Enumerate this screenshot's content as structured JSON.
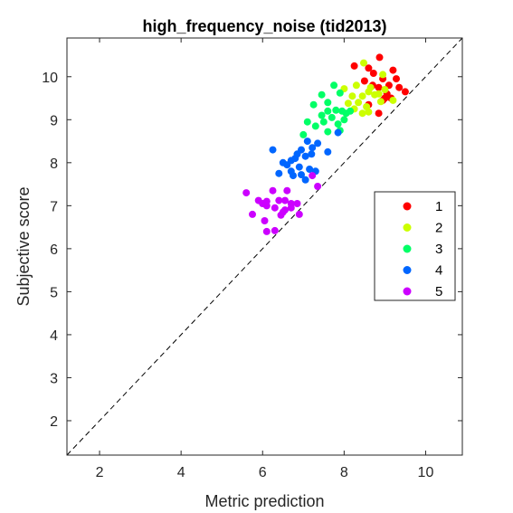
{
  "chart_data": {
    "type": "scatter",
    "title": "high_frequency_noise (tid2013)",
    "xlabel": "Metric prediction",
    "ylabel": "Subjective score",
    "xlim": [
      1.2,
      10.9
    ],
    "ylim": [
      1.2,
      10.9
    ],
    "xticks": [
      2,
      4,
      6,
      8,
      10
    ],
    "yticks": [
      2,
      3,
      4,
      5,
      6,
      7,
      8,
      9,
      10
    ],
    "grid": false,
    "reference_line": {
      "style": "dashed",
      "from": [
        1.2,
        1.2
      ],
      "to": [
        10.9,
        10.9
      ]
    },
    "legend": {
      "placement": "right"
    },
    "series": [
      {
        "name": "1",
        "color": "#ff0000",
        "points": [
          [
            8.87,
            10.45
          ],
          [
            8.25,
            10.25
          ],
          [
            8.6,
            10.2
          ],
          [
            8.72,
            10.08
          ],
          [
            8.5,
            9.9
          ],
          [
            8.95,
            9.95
          ],
          [
            9.2,
            10.15
          ],
          [
            9.28,
            9.95
          ],
          [
            9.1,
            9.8
          ],
          [
            8.85,
            9.75
          ],
          [
            8.7,
            9.8
          ],
          [
            9.35,
            9.75
          ],
          [
            9.5,
            9.65
          ],
          [
            9.05,
            9.6
          ],
          [
            9.15,
            9.5
          ],
          [
            8.95,
            9.45
          ],
          [
            8.6,
            9.35
          ],
          [
            8.85,
            9.15
          ],
          [
            9.0,
            9.5
          ]
        ]
      },
      {
        "name": "2",
        "color": "#ccff00",
        "points": [
          [
            8.48,
            10.32
          ],
          [
            8.95,
            10.05
          ],
          [
            8.0,
            9.72
          ],
          [
            8.3,
            9.8
          ],
          [
            8.6,
            9.65
          ],
          [
            8.2,
            9.55
          ],
          [
            8.45,
            9.55
          ],
          [
            8.75,
            9.58
          ],
          [
            8.9,
            9.42
          ],
          [
            9.2,
            9.45
          ],
          [
            8.35,
            9.4
          ],
          [
            8.55,
            9.3
          ],
          [
            8.6,
            9.18
          ],
          [
            8.25,
            9.25
          ],
          [
            8.45,
            9.15
          ],
          [
            8.85,
            9.6
          ],
          [
            9.0,
            9.7
          ],
          [
            8.65,
            9.75
          ],
          [
            8.1,
            9.38
          ]
        ]
      },
      {
        "name": "3",
        "color": "#00ff66",
        "points": [
          [
            7.75,
            9.8
          ],
          [
            7.9,
            9.62
          ],
          [
            7.45,
            9.58
          ],
          [
            7.6,
            9.4
          ],
          [
            7.25,
            9.35
          ],
          [
            7.6,
            9.2
          ],
          [
            7.8,
            9.22
          ],
          [
            7.95,
            9.2
          ],
          [
            8.05,
            9.15
          ],
          [
            7.45,
            9.1
          ],
          [
            7.7,
            9.05
          ],
          [
            7.1,
            8.95
          ],
          [
            7.5,
            8.95
          ],
          [
            7.85,
            8.9
          ],
          [
            7.3,
            8.85
          ],
          [
            7.6,
            8.72
          ],
          [
            7.0,
            8.65
          ],
          [
            8.15,
            9.2
          ],
          [
            8.0,
            9.0
          ],
          [
            7.9,
            8.75
          ]
        ]
      },
      {
        "name": "4",
        "color": "#0066ff",
        "points": [
          [
            6.25,
            8.3
          ],
          [
            6.95,
            8.3
          ],
          [
            7.22,
            8.35
          ],
          [
            7.1,
            8.5
          ],
          [
            7.35,
            8.45
          ],
          [
            6.85,
            8.2
          ],
          [
            7.05,
            8.15
          ],
          [
            7.2,
            8.2
          ],
          [
            6.7,
            8.05
          ],
          [
            6.5,
            8.0
          ],
          [
            6.6,
            7.95
          ],
          [
            6.9,
            7.9
          ],
          [
            7.15,
            7.85
          ],
          [
            6.4,
            7.75
          ],
          [
            6.95,
            7.72
          ],
          [
            7.3,
            7.8
          ],
          [
            6.75,
            7.7
          ],
          [
            7.05,
            7.6
          ],
          [
            6.8,
            8.1
          ],
          [
            6.7,
            7.8
          ],
          [
            7.85,
            8.7
          ],
          [
            7.6,
            8.25
          ]
        ]
      },
      {
        "name": "5",
        "color": "#cc00ff",
        "points": [
          [
            5.6,
            7.3
          ],
          [
            6.25,
            7.35
          ],
          [
            6.6,
            7.35
          ],
          [
            5.9,
            7.12
          ],
          [
            6.1,
            7.1
          ],
          [
            6.4,
            7.12
          ],
          [
            6.55,
            7.12
          ],
          [
            6.7,
            7.05
          ],
          [
            6.1,
            7.0
          ],
          [
            6.3,
            6.95
          ],
          [
            6.55,
            6.9
          ],
          [
            6.7,
            6.95
          ],
          [
            6.5,
            6.85
          ],
          [
            6.45,
            6.78
          ],
          [
            6.9,
            6.8
          ],
          [
            5.75,
            6.8
          ],
          [
            6.85,
            7.05
          ],
          [
            6.05,
            6.65
          ],
          [
            6.1,
            6.4
          ],
          [
            6.3,
            6.42
          ],
          [
            7.22,
            7.7
          ],
          [
            7.35,
            7.45
          ],
          [
            6.0,
            7.05
          ]
        ]
      }
    ]
  }
}
